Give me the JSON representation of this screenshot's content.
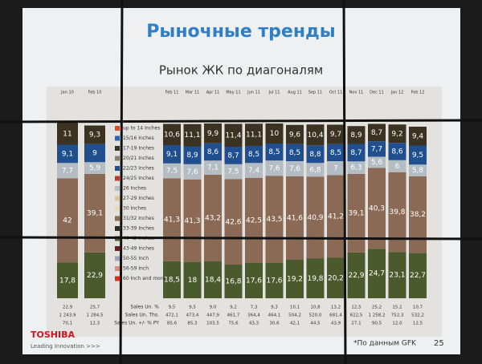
{
  "chart_data": {
    "type": "stacked_bar",
    "title": "Рыночные тренды",
    "subtitle": "Рынок ЖК по диагоналям",
    "categories": [
      "Jan 10",
      "Feb 10",
      "Feb 11",
      "Mar 11",
      "Apr 11",
      "May 11",
      "Jun 11",
      "Jul 11",
      "Aug 11",
      "Sep 11",
      "Oct 11",
      "Nov 11",
      "Dec 11",
      "Jan 12",
      "Feb 12"
    ],
    "ylim": [
      0,
      100
    ],
    "series": [
      {
        "name": "up to 14 Inches",
        "color": "#e04a2a",
        "values": [
          null,
          null,
          null,
          null,
          null,
          null,
          null,
          null,
          null,
          null,
          null,
          null,
          null,
          null,
          null
        ]
      },
      {
        "name": "15/16 Inches",
        "color": "#2a64b0",
        "values": [
          null,
          null,
          null,
          null,
          null,
          null,
          null,
          null,
          null,
          null,
          null,
          null,
          null,
          null,
          null
        ]
      },
      {
        "name": "17-19 Inches",
        "color": "#3b3222",
        "values": [
          11,
          9.3,
          10.6,
          11.1,
          9.9,
          11.4,
          11.1,
          10,
          9.6,
          10.4,
          9.7,
          8.9,
          8.7,
          9.2,
          9.4
        ],
        "value_labels": [
          "11",
          "9,3",
          "10,6",
          "11,1",
          "9,9",
          "11,4",
          "11,1",
          "10",
          "9,6",
          "10,4",
          "9,7",
          "8,9",
          "8,7",
          "9,2",
          "9,4"
        ]
      },
      {
        "name": "20/21 Inches",
        "color": "#8b7f6a",
        "values": [
          null,
          null,
          null,
          null,
          null,
          null,
          null,
          null,
          null,
          null,
          null,
          null,
          null,
          null,
          null
        ]
      },
      {
        "name": "22/23 Inches",
        "color": "#1f4f8e",
        "values": [
          9.1,
          9,
          9.1,
          8.9,
          8.6,
          8.7,
          8.5,
          8.5,
          8.5,
          8.8,
          8.5,
          8.7,
          7.7,
          8.6,
          9.5
        ],
        "value_labels": [
          "9,1",
          "9",
          "9,1",
          "8,9",
          "8,6",
          "8,7",
          "8,5",
          "8,5",
          "8,5",
          "8,8",
          "8,5",
          "8,7",
          "7,7",
          "8,6",
          "9,5"
        ]
      },
      {
        "name": "24/25 Inches",
        "color": "#c0392b",
        "values": [
          null,
          null,
          null,
          null,
          null,
          null,
          null,
          null,
          null,
          null,
          null,
          null,
          null,
          null,
          null
        ]
      },
      {
        "name": "26 Inches",
        "color": "#b4bcc4",
        "values": [
          7.7,
          5.9,
          7.5,
          7.6,
          7.1,
          7.5,
          7.4,
          7.6,
          7.6,
          6.8,
          7,
          6.3,
          5.6,
          6,
          5.8
        ],
        "value_labels": [
          "7,7",
          "5,9",
          "7,5",
          "7,6",
          "7,1",
          "7,5",
          "7,4",
          "7,6",
          "7,6",
          "6,8",
          "7",
          "6,3",
          "5,6",
          "6",
          "5,8"
        ]
      },
      {
        "name": "27-29 Inches",
        "color": "#d9c49a",
        "values": [
          null,
          null,
          null,
          null,
          null,
          null,
          null,
          null,
          null,
          null,
          null,
          null,
          null,
          null,
          null
        ]
      },
      {
        "name": "30 Inches",
        "color": "#e8d8c0",
        "values": [
          null,
          null,
          null,
          null,
          null,
          null,
          null,
          null,
          null,
          null,
          null,
          null,
          null,
          null,
          null
        ]
      },
      {
        "name": "31/32 Inches",
        "color": "#8a6a55",
        "values": [
          42,
          39.1,
          41.3,
          41.3,
          43.2,
          42.6,
          42.5,
          43.5,
          41.6,
          40.9,
          41.2,
          39.1,
          40.3,
          39.8,
          38.2
        ],
        "value_labels": [
          "42",
          "39,1",
          "41,3",
          "41,3",
          "43,2",
          "42,6",
          "42,5",
          "43,5",
          "41,6",
          "40,9",
          "41,2",
          "39,1",
          "40,3",
          "39,8",
          "38,2"
        ]
      },
      {
        "name": "33-39 Inches",
        "color": "#2b2b2b",
        "values": [
          null,
          null,
          null,
          null,
          null,
          null,
          null,
          null,
          null,
          null,
          null,
          null,
          null,
          null,
          null
        ]
      },
      {
        "name": "40-42 Inches",
        "color": "#4b5a2c",
        "values": [
          17.8,
          22.9,
          18.5,
          18,
          18.4,
          16.8,
          17.6,
          17.6,
          19.2,
          19.8,
          20.2,
          22.9,
          24.7,
          23.1,
          22.7
        ],
        "value_labels": [
          "17,8",
          "22,9",
          "18,5",
          "18",
          "18,4",
          "16,8",
          "17,6",
          "17,6",
          "19,2",
          "19,8",
          "20,2",
          "22,9",
          "24,7",
          "23,1",
          "22,7"
        ]
      },
      {
        "name": "43-49 Inches",
        "color": "#6b1e1e",
        "values": [
          null,
          null,
          null,
          null,
          null,
          null,
          null,
          null,
          null,
          null,
          null,
          null,
          null,
          null,
          null
        ]
      },
      {
        "name": "50-55 Inch",
        "color": "#9aa6b8",
        "values": [
          null,
          null,
          null,
          null,
          null,
          null,
          null,
          null,
          null,
          null,
          null,
          null,
          null,
          null,
          null
        ]
      },
      {
        "name": "56-59 Inch",
        "color": "#d98a7a",
        "values": [
          null,
          null,
          null,
          null,
          null,
          null,
          null,
          null,
          null,
          null,
          null,
          null,
          null,
          null,
          null
        ]
      },
      {
        "name": "60 Inch and more",
        "color": "#e02a1a",
        "values": [
          null,
          null,
          null,
          null,
          null,
          null,
          null,
          null,
          null,
          null,
          null,
          null,
          null,
          null,
          null
        ]
      }
    ],
    "table": {
      "row_labels": [
        "Sales Un. %",
        "Sales Un. Ths.",
        "Sales Un. +/- % PY"
      ],
      "rows": [
        [
          "22,9",
          "25,7",
          "9,5",
          "9,5",
          "9,0",
          "9,2",
          "7,3",
          "9,3",
          "10,1",
          "10,8",
          "13,2",
          "12,5",
          "25,2",
          "15,1",
          "10,7"
        ],
        [
          "1 243,9",
          "1 284,5",
          "472,1",
          "473,4",
          "447,9",
          "461,7",
          "364,4",
          "464,1",
          "504,2",
          "520,0",
          "681,4",
          "622,5",
          "1 258,2",
          "752,3",
          "532,2"
        ],
        [
          "70,1",
          "12,3",
          "85,6",
          "85,3",
          "103,5",
          "75,6",
          "43,3",
          "30,6",
          "42,1",
          "44,5",
          "43,9",
          "27,1",
          "90,5",
          "12,0",
          "12,5"
        ]
      ]
    },
    "footer": {
      "brand": "TOSHIBA",
      "tagline": "Leading Innovation >>>",
      "source": "*По данным GFK",
      "page": "25"
    }
  }
}
